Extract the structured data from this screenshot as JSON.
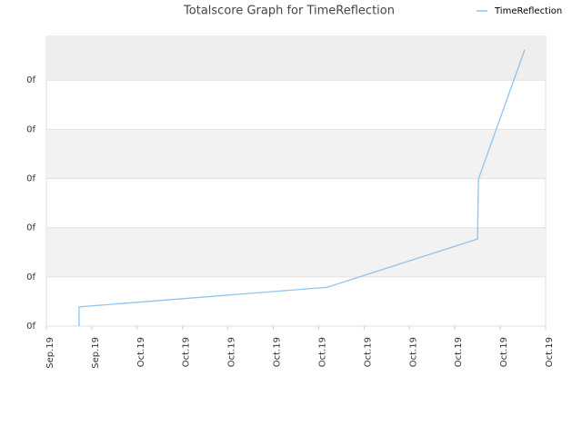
{
  "chart_data": {
    "type": "line",
    "title": "Totalscore Graph for TimeReflection",
    "x": [
      0.72,
      0.72,
      6.19,
      9.5,
      9.52,
      10.54
    ],
    "series": [
      {
        "name": "TimeReflection",
        "color": "#90c4ee",
        "values": [
          0,
          0.39,
          0.79,
          1.77,
          2.99,
          5.62
        ]
      }
    ],
    "xlim": [
      0,
      11
    ],
    "xticks": [
      {
        "value": 0,
        "label": "Sep.19"
      },
      {
        "value": 1,
        "label": "Sep.19"
      },
      {
        "value": 2,
        "label": "Oct.19"
      },
      {
        "value": 3,
        "label": "Oct.19"
      },
      {
        "value": 4,
        "label": "Oct.19"
      },
      {
        "value": 5,
        "label": "Oct.19"
      },
      {
        "value": 6,
        "label": "Oct.19"
      },
      {
        "value": 7,
        "label": "Oct.19"
      },
      {
        "value": 8,
        "label": "Oct.19"
      },
      {
        "value": 9,
        "label": "Oct.19"
      },
      {
        "value": 10,
        "label": "Oct.19"
      },
      {
        "value": 11,
        "label": "Oct.19"
      }
    ],
    "ylim": [
      0,
      5.89
    ],
    "yticks": [
      {
        "value": 0,
        "label": "0f"
      },
      {
        "value": 1,
        "label": "0f"
      },
      {
        "value": 2,
        "label": "0f"
      },
      {
        "value": 3,
        "label": "0f"
      },
      {
        "value": 4,
        "label": "0f"
      },
      {
        "value": 5,
        "label": "0f"
      }
    ],
    "grid": true,
    "legend": "top-right"
  }
}
